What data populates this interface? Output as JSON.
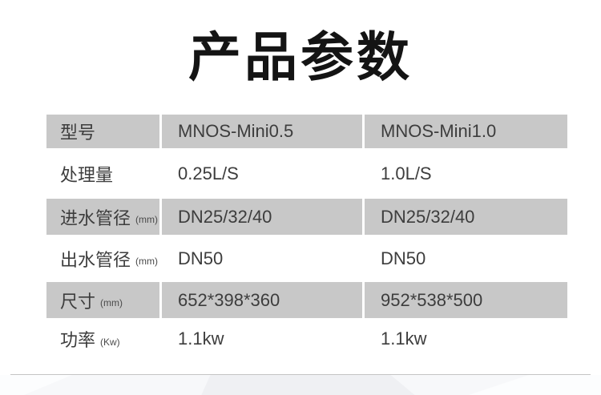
{
  "page": {
    "title": "产品参数"
  },
  "colors": {
    "row_shaded": "#c8c8c8",
    "row_plain": "#ffffff",
    "text_primary": "#3d3d3d",
    "title_color": "#141414",
    "divider": "#c4c4c4",
    "footer_bg": "#f7f8fa"
  },
  "table": {
    "columns": [
      "spec-label",
      "model-mini-0-5",
      "model-mini-1-0"
    ],
    "rows": [
      {
        "label": "型号",
        "unit": "",
        "values": [
          "MNOS-Mini0.5",
          "MNOS-Mini1.0"
        ],
        "shaded": true
      },
      {
        "label": "处理量",
        "unit": "",
        "values": [
          "0.25L/S",
          "1.0L/S"
        ],
        "shaded": false
      },
      {
        "label": "进水管径",
        "unit": "(mm)",
        "values": [
          "DN25/32/40",
          "DN25/32/40"
        ],
        "shaded": true
      },
      {
        "label": "出水管径",
        "unit": "(mm)",
        "values": [
          "DN50",
          "DN50"
        ],
        "shaded": false
      },
      {
        "label": "尺寸",
        "unit": "(mm)",
        "values": [
          "652*398*360",
          "952*538*500"
        ],
        "shaded": true
      },
      {
        "label": "功率",
        "unit": "(Kw)",
        "values": [
          "1.1kw",
          "1.1kw"
        ],
        "shaded": false
      }
    ]
  }
}
